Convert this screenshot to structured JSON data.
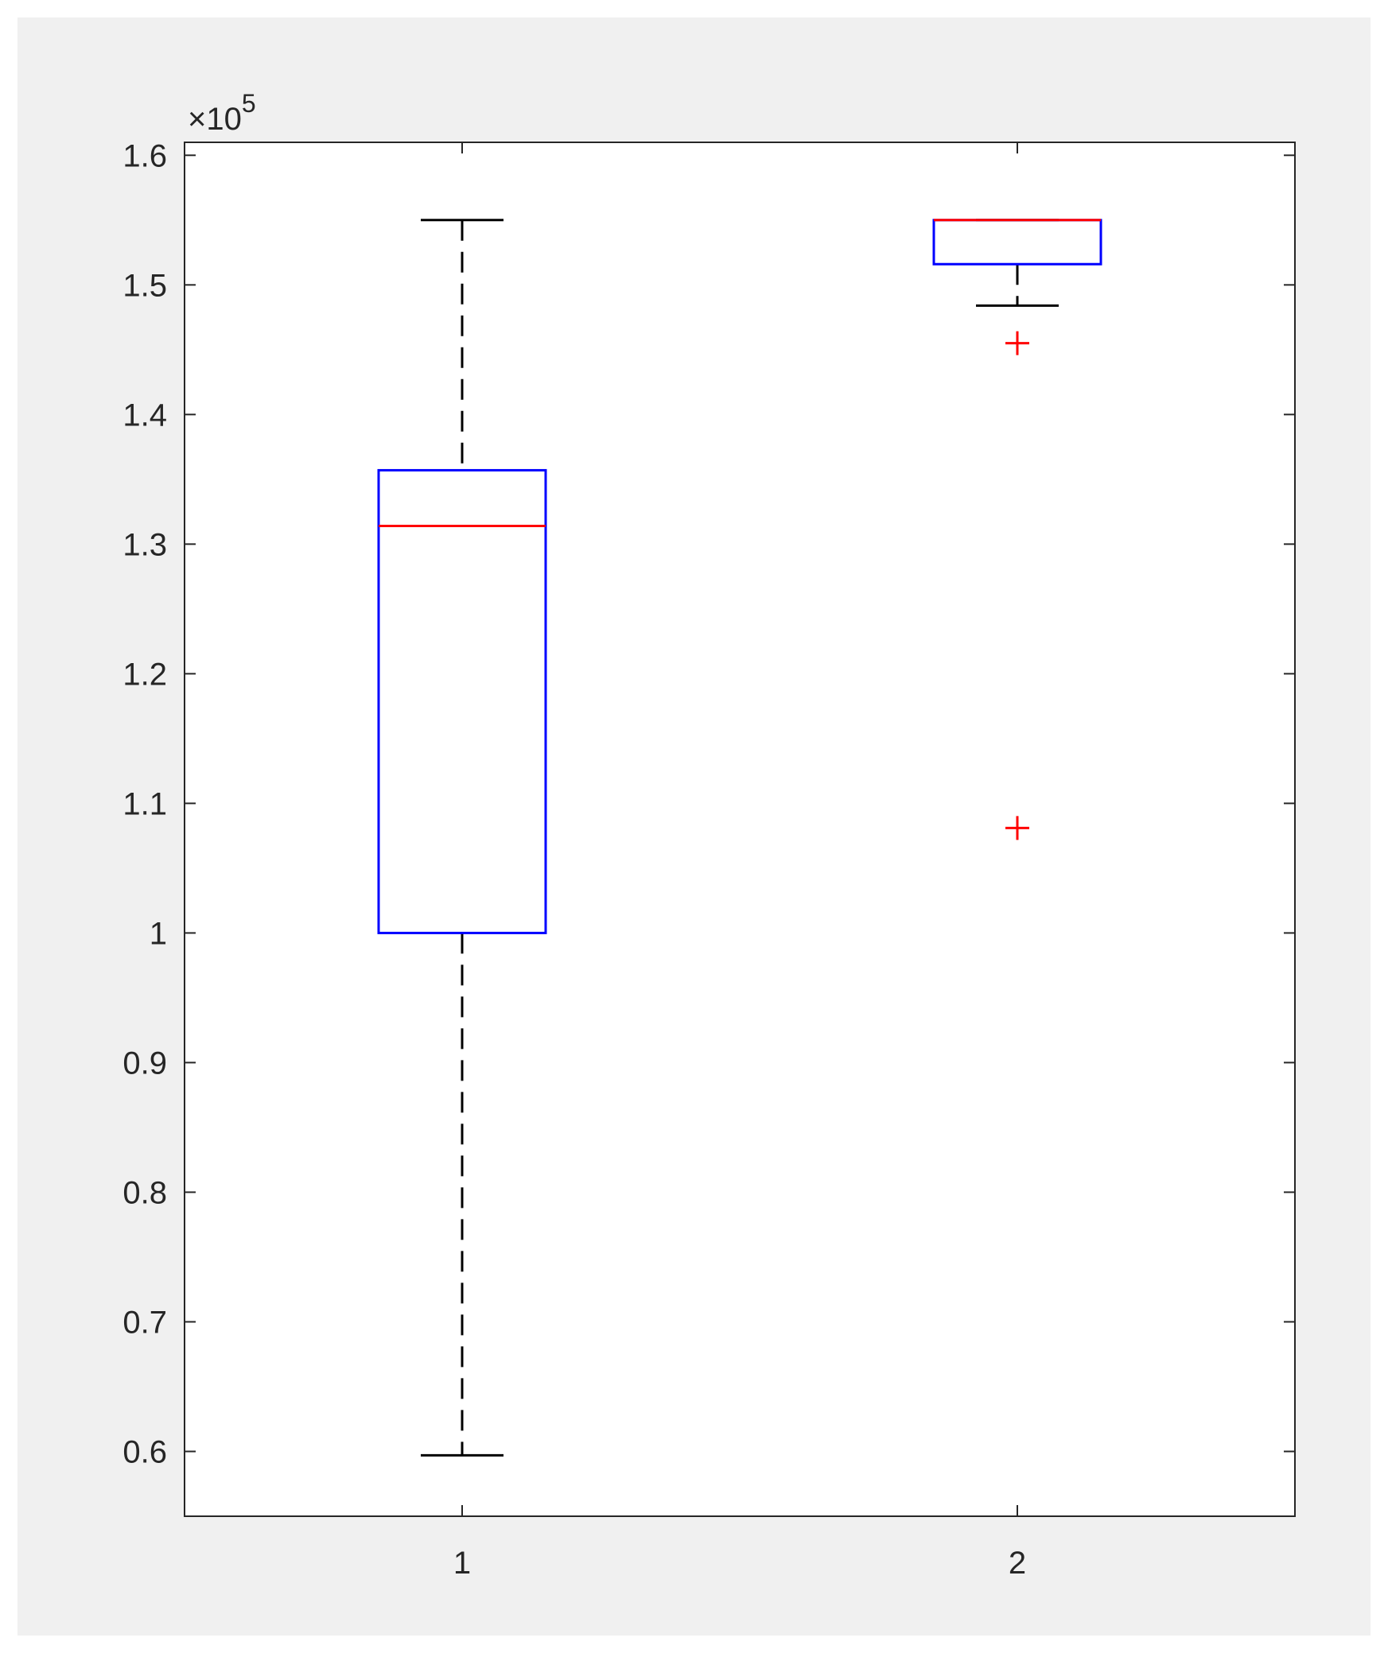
{
  "chart_data": {
    "type": "boxplot",
    "title": "",
    "xlabel": "",
    "ylabel": "",
    "exponent_label": {
      "prefix": "×10",
      "power": "5"
    },
    "ylim": [
      0.55,
      1.61
    ],
    "y_ticks": [
      0.6,
      0.7,
      0.8,
      0.9,
      1,
      1.1,
      1.2,
      1.3,
      1.4,
      1.5,
      1.6
    ],
    "y_tick_labels": [
      "0.6",
      "0.7",
      "0.8",
      "0.9",
      "1",
      "1.1",
      "1.2",
      "1.3",
      "1.4",
      "1.5",
      "1.6"
    ],
    "xlim": [
      0.5,
      2.5
    ],
    "categories": [
      "1",
      "2"
    ],
    "boxes": [
      {
        "category": "1",
        "lower_whisker": 0.597,
        "q1": 1.0,
        "median": 1.314,
        "q3": 1.357,
        "upper_whisker": 1.55,
        "outliers": []
      },
      {
        "category": "2",
        "lower_whisker": 1.484,
        "q1": 1.516,
        "median": 1.55,
        "q3": 1.55,
        "upper_whisker": 1.55,
        "outliers": [
          1.455,
          1.081
        ]
      }
    ],
    "colors": {
      "figure_background": "#f0f0f0",
      "axes_background": "#ffffff",
      "box": "#0000ff",
      "median": "#ff0000",
      "whisker": "#000000",
      "outlier": "#ff0000",
      "axis": "#262626",
      "text": "#262626"
    }
  }
}
